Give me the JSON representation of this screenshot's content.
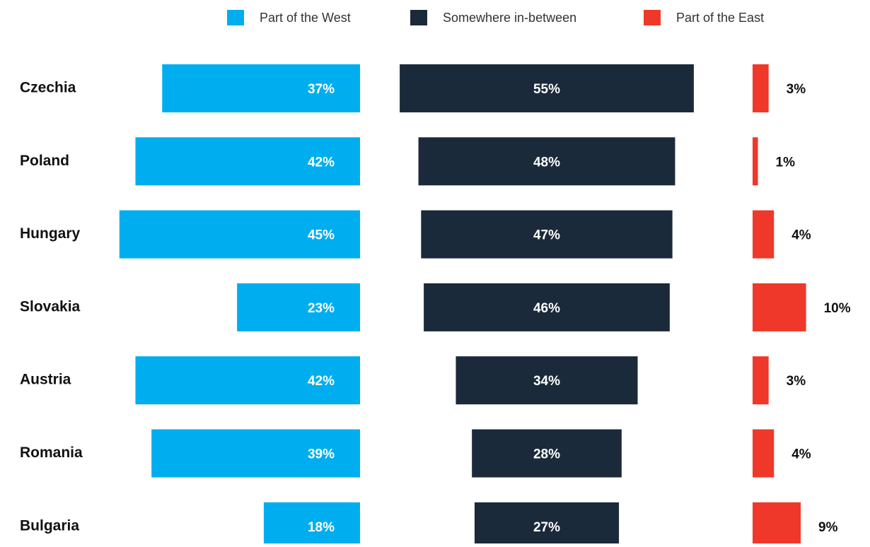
{
  "chart_data": {
    "type": "bar",
    "categories": [
      "Czechia",
      "Poland",
      "Hungary",
      "Slovakia",
      "Austria",
      "Romania",
      "Bulgaria"
    ],
    "series": [
      {
        "name": "Part of the West",
        "color": "#00aeef",
        "values": [
          37,
          42,
          45,
          23,
          42,
          39,
          18
        ],
        "value_labels": [
          "37%",
          "42%",
          "45%",
          "23%",
          "42%",
          "39%",
          "18%"
        ]
      },
      {
        "name": "Somewhere in-between",
        "color": "#1b2a3a",
        "values": [
          55,
          48,
          47,
          46,
          34,
          28,
          27
        ],
        "value_labels": [
          "55%",
          "48%",
          "47%",
          "46%",
          "34%",
          "28%",
          "27%"
        ]
      },
      {
        "name": "Part of the East",
        "color": "#ef3829",
        "values": [
          3,
          1,
          4,
          10,
          3,
          4,
          9
        ],
        "value_labels": [
          "3%",
          "1%",
          "4%",
          "10%",
          "3%",
          "4%",
          "9%"
        ]
      }
    ]
  }
}
